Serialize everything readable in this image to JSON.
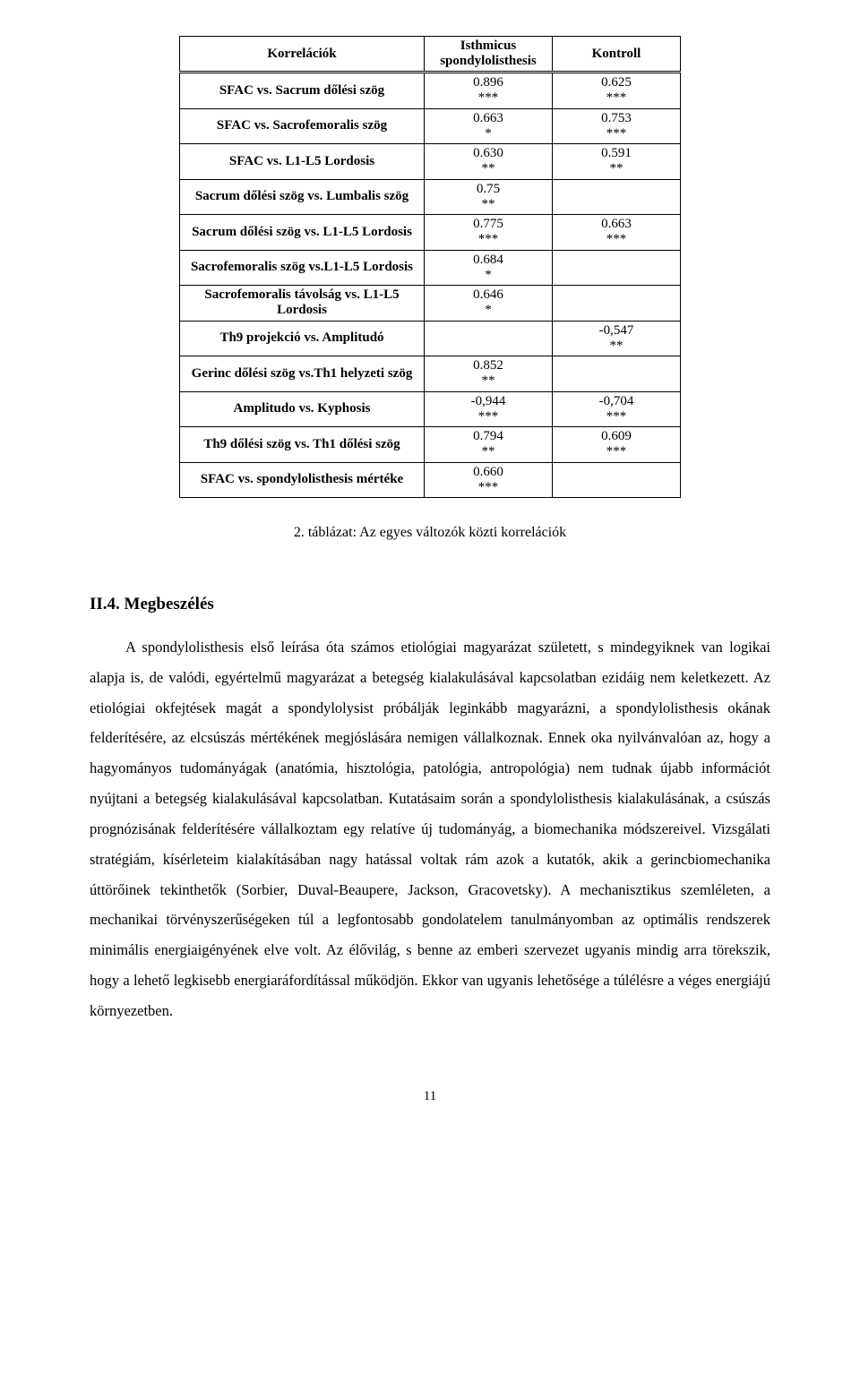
{
  "table": {
    "headers": {
      "c0": "Korrelációk",
      "c1": "Isthmicus spondylolisthesis",
      "c2": "Kontroll"
    },
    "rows": [
      {
        "label": "SFAC vs. Sacrum dőlési szög",
        "a_val": "0.896",
        "a_sig": "***",
        "b_val": "0.625",
        "b_sig": "***"
      },
      {
        "label": "SFAC vs. Sacrofemoralis szög",
        "a_val": "0.663",
        "a_sig": "*",
        "b_val": "0.753",
        "b_sig": "***"
      },
      {
        "label": "SFAC vs. L1-L5 Lordosis",
        "a_val": "0.630",
        "a_sig": "**",
        "b_val": "0.591",
        "b_sig": "**"
      },
      {
        "label": "Sacrum dőlési szög vs. Lumbalis szög",
        "a_val": "0.75",
        "a_sig": "**",
        "b_val": "",
        "b_sig": ""
      },
      {
        "label": "Sacrum dőlési szög vs. L1-L5 Lordosis",
        "a_val": "0.775",
        "a_sig": "***",
        "b_val": "0.663",
        "b_sig": "***"
      },
      {
        "label": "Sacrofemoralis szög vs.L1-L5 Lordosis",
        "a_val": "0.684",
        "a_sig": "*",
        "b_val": "",
        "b_sig": ""
      },
      {
        "label": "Sacrofemoralis távolság vs. L1-L5 Lordosis",
        "a_val": "0.646",
        "a_sig": "*",
        "b_val": "",
        "b_sig": ""
      },
      {
        "label": "Th9 projekció vs. Amplitudó",
        "a_val": "",
        "a_sig": "",
        "b_val": "-0,547",
        "b_sig": "**"
      },
      {
        "label": "Gerinc dőlési szög vs.Th1 helyzeti szög",
        "a_val": "0.852",
        "a_sig": "**",
        "b_val": "",
        "b_sig": ""
      },
      {
        "label": "Amplitudo vs. Kyphosis",
        "a_val": "-0,944",
        "a_sig": "***",
        "b_val": "-0,704",
        "b_sig": "***"
      },
      {
        "label": "Th9 dőlési szög vs. Th1 dőlési szög",
        "a_val": "0.794",
        "a_sig": "**",
        "b_val": "0.609",
        "b_sig": "***"
      },
      {
        "label": "SFAC vs. spondylolisthesis mértéke",
        "a_val": "0.660",
        "a_sig": "***",
        "b_val": "",
        "b_sig": ""
      }
    ]
  },
  "caption": "2. táblázat: Az egyes változók közti korrelációk",
  "section_title": "II.4. Megbeszélés",
  "paragraph": "A spondylolisthesis első leírása óta számos etiológiai magyarázat született, s mindegyiknek van logikai alapja is, de valódi, egyértelmű magyarázat a betegség kialakulásával kapcsolatban ezidáig nem keletkezett. Az etiológiai okfejtések magát a spondylolysist próbálják leginkább magyarázni, a spondylolisthesis okának felderítésére, az elcsúszás mértékének megjóslására nemigen vállalkoznak. Ennek oka nyilvánvalóan az, hogy a hagyományos tudományágak (anatómia, hisztológia, patológia, antropológia) nem tudnak újabb információt nyújtani a betegség kialakulásával kapcsolatban. Kutatásaim során a spondylolisthesis kialakulásának, a csúszás prognózisának felderítésére vállalkoztam egy relatíve új tudományág, a biomechanika módszereivel. Vizsgálati stratégiám, kísérleteim kialakításában nagy hatással voltak rám azok a kutatók, akik a gerincbiomechanika úttörőinek tekinthetők (Sorbier, Duval-Beaupere, Jackson, Gracovetsky). A mechanisztikus szemléleten, a mechanikai törvényszerűségeken túl a legfontosabb gondolatelem tanulmányomban az optimális rendszerek minimális energiaigényének elve volt. Az élővilág, s benne az emberi szervezet ugyanis mindig arra törekszik, hogy a lehető legkisebb energiaráfordítással működjön. Ekkor van ugyanis lehetősége a túlélésre a véges energiájú környezetben.",
  "page_number": "11"
}
